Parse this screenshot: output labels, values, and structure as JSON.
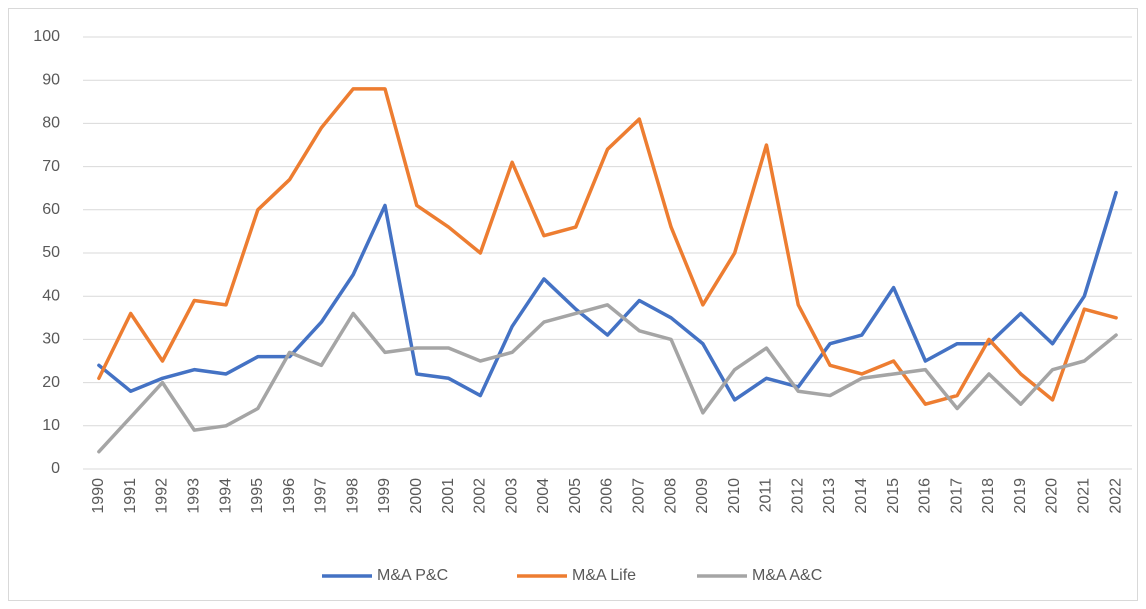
{
  "chart_data": {
    "type": "line",
    "categories": [
      "1990",
      "1991",
      "1992",
      "1993",
      "1994",
      "1995",
      "1996",
      "1997",
      "1998",
      "1999",
      "2000",
      "2001",
      "2002",
      "2003",
      "2004",
      "2005",
      "2006",
      "2007",
      "2008",
      "2009",
      "2010",
      "2011",
      "2012",
      "2013",
      "2014",
      "2015",
      "2016",
      "2017",
      "2018",
      "2019",
      "2020",
      "2021",
      "2022"
    ],
    "series": [
      {
        "name": "M&A P&C",
        "color": "#4472c4",
        "values": [
          24,
          18,
          21,
          23,
          22,
          26,
          26,
          34,
          45,
          61,
          22,
          21,
          17,
          33,
          44,
          37,
          31,
          39,
          35,
          29,
          16,
          21,
          19,
          29,
          31,
          42,
          25,
          29,
          29,
          36,
          29,
          40,
          64
        ]
      },
      {
        "name": "M&A Life",
        "color": "#ed7d31",
        "values": [
          21,
          36,
          25,
          39,
          38,
          60,
          67,
          79,
          88,
          88,
          61,
          56,
          50,
          71,
          54,
          56,
          74,
          81,
          56,
          38,
          50,
          75,
          38,
          24,
          22,
          25,
          15,
          17,
          30,
          22,
          16,
          37,
          35
        ]
      },
      {
        "name": "M&A A&C",
        "color": "#a5a5a5",
        "values": [
          4,
          12,
          20,
          9,
          10,
          14,
          27,
          24,
          36,
          27,
          28,
          28,
          25,
          27,
          34,
          36,
          38,
          32,
          30,
          13,
          23,
          28,
          18,
          17,
          21,
          22,
          23,
          14,
          22,
          15,
          23,
          25,
          31
        ]
      }
    ],
    "ylim": [
      0,
      100
    ],
    "yticks": [
      0,
      10,
      20,
      30,
      40,
      50,
      60,
      70,
      80,
      90,
      100
    ],
    "grid": true,
    "legend": "bottom"
  }
}
